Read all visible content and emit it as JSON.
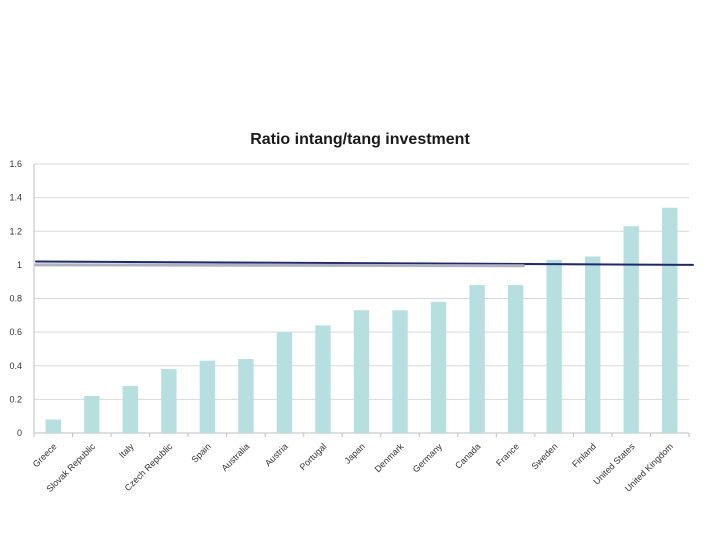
{
  "chart_data": {
    "type": "bar",
    "title": "Ratio intang/tang investment",
    "xlabel": "",
    "ylabel": "",
    "ylim": [
      0,
      1.6
    ],
    "yticks": [
      "0",
      "0.2",
      "0.4",
      "0.6",
      "0.8",
      "1",
      "1.2",
      "1.4",
      "1.6"
    ],
    "grid": true,
    "categories": [
      "Greece",
      "Slovak Republic",
      "Italy",
      "Czech Republic",
      "Spain",
      "Australia",
      "Austria",
      "Portugal",
      "Japan",
      "Denmark",
      "Germany",
      "Canada",
      "France",
      "Sweden",
      "Finland",
      "United States",
      "United Kingdom"
    ],
    "values": [
      0.08,
      0.22,
      0.28,
      0.38,
      0.43,
      0.44,
      0.6,
      0.64,
      0.73,
      0.73,
      0.78,
      0.88,
      0.88,
      1.03,
      1.05,
      1.23,
      1.34
    ],
    "bar_color": "#b8dfe0",
    "reference_lines": [
      {
        "x_start": "Greece",
        "y_start": 1.02,
        "x_end": "United Kingdom",
        "y_end": 1.0,
        "color": "#1f2a6b"
      },
      {
        "x_start": "Greece",
        "y_start": 1.0,
        "x_end": "France",
        "y_end": 0.995,
        "color": "#b0b0c0"
      }
    ]
  }
}
